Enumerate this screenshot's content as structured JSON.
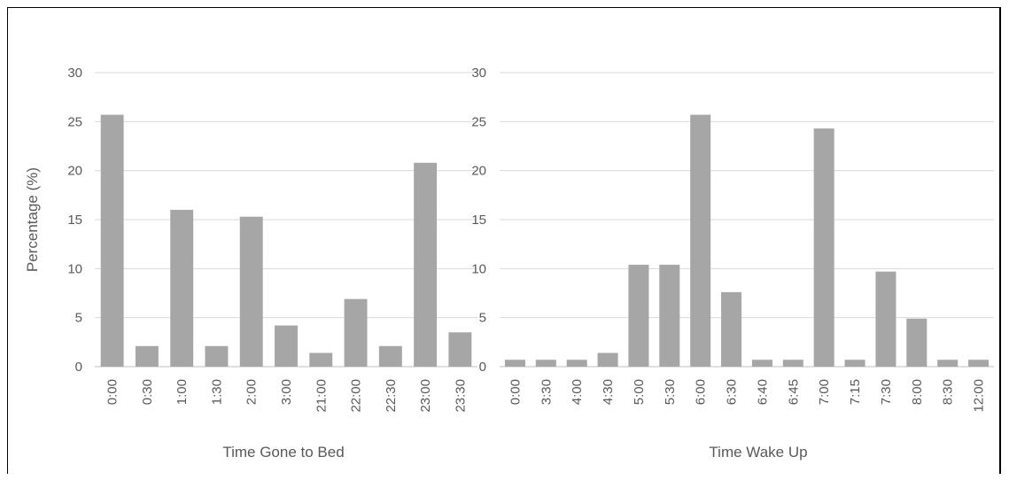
{
  "chart_data": [
    {
      "type": "bar",
      "xlabel": "Time Gone to Bed",
      "ylabel": "Percentage (%)",
      "ylim": [
        0,
        30
      ],
      "yticks": [
        0,
        5,
        10,
        15,
        20,
        25,
        30
      ],
      "grid": true,
      "bar_color": "#a6a6a6",
      "categories": [
        "0:00",
        "0:30",
        "1:00",
        "1:30",
        "2:00",
        "3:00",
        "21:00",
        "22:00",
        "22:30",
        "23:00",
        "23:30"
      ],
      "values": [
        25.7,
        2.1,
        16.0,
        2.1,
        15.3,
        4.2,
        1.4,
        6.9,
        2.1,
        20.8,
        3.5
      ]
    },
    {
      "type": "bar",
      "xlabel": "Time Wake Up",
      "ylabel": "",
      "ylim": [
        0,
        30
      ],
      "yticks": [
        0,
        5,
        10,
        15,
        20,
        25,
        30
      ],
      "grid": true,
      "bar_color": "#a6a6a6",
      "categories": [
        "0:00",
        "3:30",
        "4:00",
        "4:30",
        "5:00",
        "5:30",
        "6:00",
        "6:30",
        "6:40",
        "6:45",
        "7:00",
        "7:15",
        "7:30",
        "8:00",
        "8:30",
        "12:00"
      ],
      "values": [
        0.7,
        0.7,
        0.7,
        1.4,
        10.4,
        10.4,
        25.7,
        7.6,
        0.7,
        0.7,
        24.3,
        0.7,
        9.7,
        4.9,
        0.7,
        0.7
      ]
    }
  ]
}
